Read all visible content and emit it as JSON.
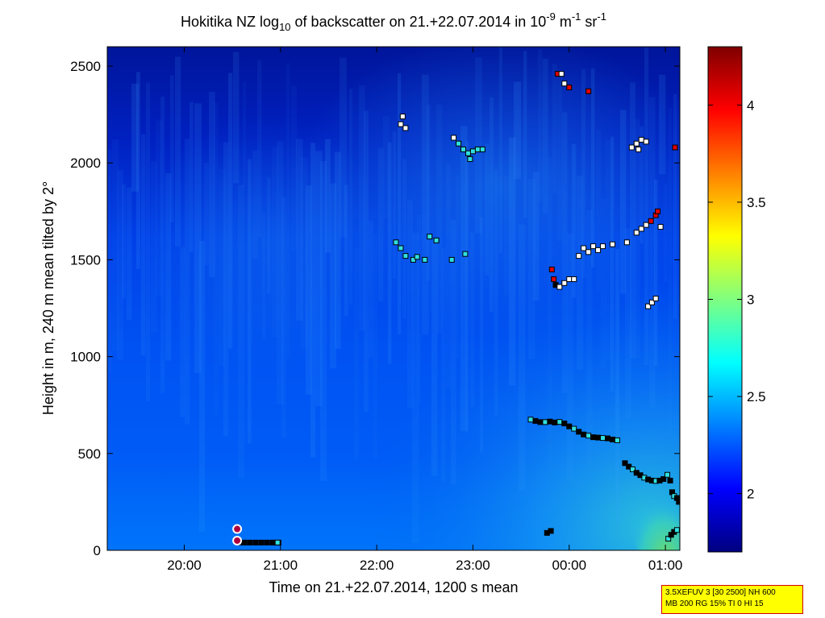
{
  "chart_data": {
    "type": "heatmap",
    "title": {
      "prefix": "Hokitika NZ log",
      "sub": "10",
      "middle": " of backscatter on 21.+22.07.2014 in 10",
      "sup1": "-9",
      "unit1": " m",
      "sup2": "-1",
      "unit2": " sr",
      "sup3": "-1"
    },
    "xlabel": "Time on 21.+22.07.2014, 1200 s mean",
    "ylabel": "Height in m, 240 m mean tilted by 2°",
    "x_ticks": [
      "20:00",
      "21:00",
      "22:00",
      "23:00",
      "00:00",
      "01:00"
    ],
    "x_tick_hours": [
      20,
      21,
      22,
      23,
      24,
      25
    ],
    "xlim_hours": [
      19.2,
      25.15
    ],
    "y_ticks": [
      0,
      500,
      1000,
      1500,
      2000,
      2500
    ],
    "ylim": [
      0,
      2600
    ],
    "colorbar": {
      "ticks": [
        2,
        2.5,
        3,
        3.5,
        4
      ],
      "tick_labels": [
        "2",
        "2.5",
        "3",
        "3.5",
        "4"
      ],
      "range": [
        1.7,
        4.3
      ],
      "colormap": "jet"
    },
    "markers": {
      "surface_circles": [
        {
          "t": 20.55,
          "h": 110
        },
        {
          "t": 20.55,
          "h": 50
        }
      ],
      "ground_layer": [
        {
          "t": 20.56,
          "h": 40
        },
        {
          "t": 20.62,
          "h": 40
        },
        {
          "t": 20.68,
          "h": 40
        },
        {
          "t": 20.74,
          "h": 40
        },
        {
          "t": 20.8,
          "h": 40
        },
        {
          "t": 20.86,
          "h": 40
        },
        {
          "t": 20.92,
          "h": 40
        },
        {
          "t": 20.98,
          "h": 40
        }
      ],
      "low_layer": [
        {
          "t": 23.6,
          "h": 675
        },
        {
          "t": 23.65,
          "h": 668
        },
        {
          "t": 23.7,
          "h": 662
        },
        {
          "t": 23.75,
          "h": 662
        },
        {
          "t": 23.8,
          "h": 665
        },
        {
          "t": 23.85,
          "h": 660
        },
        {
          "t": 23.9,
          "h": 663
        },
        {
          "t": 23.95,
          "h": 655
        },
        {
          "t": 24.0,
          "h": 640
        },
        {
          "t": 24.05,
          "h": 628
        },
        {
          "t": 24.1,
          "h": 612
        },
        {
          "t": 24.15,
          "h": 598
        },
        {
          "t": 24.2,
          "h": 592
        },
        {
          "t": 24.25,
          "h": 584
        },
        {
          "t": 24.3,
          "h": 582
        },
        {
          "t": 24.35,
          "h": 580
        },
        {
          "t": 24.4,
          "h": 578
        },
        {
          "t": 24.45,
          "h": 572
        },
        {
          "t": 24.5,
          "h": 568
        },
        {
          "t": 24.58,
          "h": 450
        },
        {
          "t": 24.62,
          "h": 432
        },
        {
          "t": 24.66,
          "h": 418
        },
        {
          "t": 24.7,
          "h": 400
        },
        {
          "t": 24.74,
          "h": 388
        },
        {
          "t": 24.78,
          "h": 375
        },
        {
          "t": 24.82,
          "h": 366
        },
        {
          "t": 24.86,
          "h": 360
        },
        {
          "t": 24.9,
          "h": 358
        },
        {
          "t": 24.94,
          "h": 360
        },
        {
          "t": 24.98,
          "h": 368
        },
        {
          "t": 25.02,
          "h": 390
        },
        {
          "t": 25.05,
          "h": 360
        },
        {
          "t": 25.07,
          "h": 300
        },
        {
          "t": 25.09,
          "h": 280
        },
        {
          "t": 25.12,
          "h": 270
        },
        {
          "t": 25.14,
          "h": 250
        },
        {
          "t": 25.03,
          "h": 60
        },
        {
          "t": 25.06,
          "h": 80
        },
        {
          "t": 25.09,
          "h": 95
        },
        {
          "t": 25.12,
          "h": 105
        },
        {
          "t": 23.77,
          "h": 90
        },
        {
          "t": 23.81,
          "h": 100
        }
      ],
      "cloud_points": [
        {
          "t": 22.2,
          "h": 1590,
          "c": "cyan"
        },
        {
          "t": 22.25,
          "h": 1560,
          "c": "cyan"
        },
        {
          "t": 22.3,
          "h": 1520,
          "c": "cyan"
        },
        {
          "t": 22.38,
          "h": 1500,
          "c": "cyan"
        },
        {
          "t": 22.42,
          "h": 1515,
          "c": "cyan"
        },
        {
          "t": 22.5,
          "h": 1500,
          "c": "cyan"
        },
        {
          "t": 22.55,
          "h": 1620,
          "c": "cyan"
        },
        {
          "t": 22.62,
          "h": 1600,
          "c": "cyan"
        },
        {
          "t": 22.78,
          "h": 1500,
          "c": "cyan"
        },
        {
          "t": 22.92,
          "h": 1530,
          "c": "cyan"
        },
        {
          "t": 22.25,
          "h": 2200,
          "c": "white"
        },
        {
          "t": 22.3,
          "h": 2180,
          "c": "white"
        },
        {
          "t": 22.27,
          "h": 2240,
          "c": "white"
        },
        {
          "t": 22.8,
          "h": 2130,
          "c": "white"
        },
        {
          "t": 22.85,
          "h": 2100,
          "c": "cyan"
        },
        {
          "t": 22.9,
          "h": 2070,
          "c": "cyan"
        },
        {
          "t": 22.95,
          "h": 2050,
          "c": "cyan"
        },
        {
          "t": 23.0,
          "h": 2060,
          "c": "cyan"
        },
        {
          "t": 23.05,
          "h": 2070,
          "c": "cyan"
        },
        {
          "t": 23.1,
          "h": 2070,
          "c": "cyan"
        },
        {
          "t": 22.97,
          "h": 2020,
          "c": "cyan"
        },
        {
          "t": 23.82,
          "h": 1450,
          "c": "red"
        },
        {
          "t": 23.84,
          "h": 1400,
          "c": "red"
        },
        {
          "t": 23.86,
          "h": 1370,
          "c": "black"
        },
        {
          "t": 23.9,
          "h": 1360,
          "c": "white"
        },
        {
          "t": 23.95,
          "h": 1380,
          "c": "white"
        },
        {
          "t": 24.0,
          "h": 1400,
          "c": "white"
        },
        {
          "t": 24.05,
          "h": 1400,
          "c": "white"
        },
        {
          "t": 24.1,
          "h": 1520,
          "c": "white"
        },
        {
          "t": 24.15,
          "h": 1560,
          "c": "white"
        },
        {
          "t": 24.2,
          "h": 1540,
          "c": "white"
        },
        {
          "t": 24.25,
          "h": 1570,
          "c": "white"
        },
        {
          "t": 24.3,
          "h": 1550,
          "c": "white"
        },
        {
          "t": 24.35,
          "h": 1570,
          "c": "white"
        },
        {
          "t": 24.45,
          "h": 1580,
          "c": "white"
        },
        {
          "t": 24.6,
          "h": 1590,
          "c": "white"
        },
        {
          "t": 24.7,
          "h": 1640,
          "c": "white"
        },
        {
          "t": 24.75,
          "h": 1660,
          "c": "white"
        },
        {
          "t": 24.8,
          "h": 1680,
          "c": "white"
        },
        {
          "t": 24.85,
          "h": 1700,
          "c": "red"
        },
        {
          "t": 24.9,
          "h": 1730,
          "c": "red"
        },
        {
          "t": 24.92,
          "h": 1750,
          "c": "red"
        },
        {
          "t": 24.95,
          "h": 1670,
          "c": "white"
        },
        {
          "t": 24.82,
          "h": 1260,
          "c": "white"
        },
        {
          "t": 24.86,
          "h": 1280,
          "c": "white"
        },
        {
          "t": 24.9,
          "h": 1300,
          "c": "white"
        },
        {
          "t": 24.65,
          "h": 2080,
          "c": "white"
        },
        {
          "t": 24.7,
          "h": 2100,
          "c": "white"
        },
        {
          "t": 24.75,
          "h": 2120,
          "c": "white"
        },
        {
          "t": 24.8,
          "h": 2110,
          "c": "white"
        },
        {
          "t": 24.72,
          "h": 2070,
          "c": "white"
        },
        {
          "t": 25.1,
          "h": 2080,
          "c": "red"
        },
        {
          "t": 23.88,
          "h": 2460,
          "c": "red"
        },
        {
          "t": 23.92,
          "h": 2460,
          "c": "white"
        },
        {
          "t": 23.95,
          "h": 2410,
          "c": "white"
        },
        {
          "t": 24.0,
          "h": 2390,
          "c": "red"
        },
        {
          "t": 24.2,
          "h": 2370,
          "c": "red"
        }
      ]
    }
  },
  "info_box": {
    "line1": "3.5XEFUV 3 [30 2500] NH 600",
    "line2": "MB 200 RG 15% TI 0 HI 15"
  }
}
